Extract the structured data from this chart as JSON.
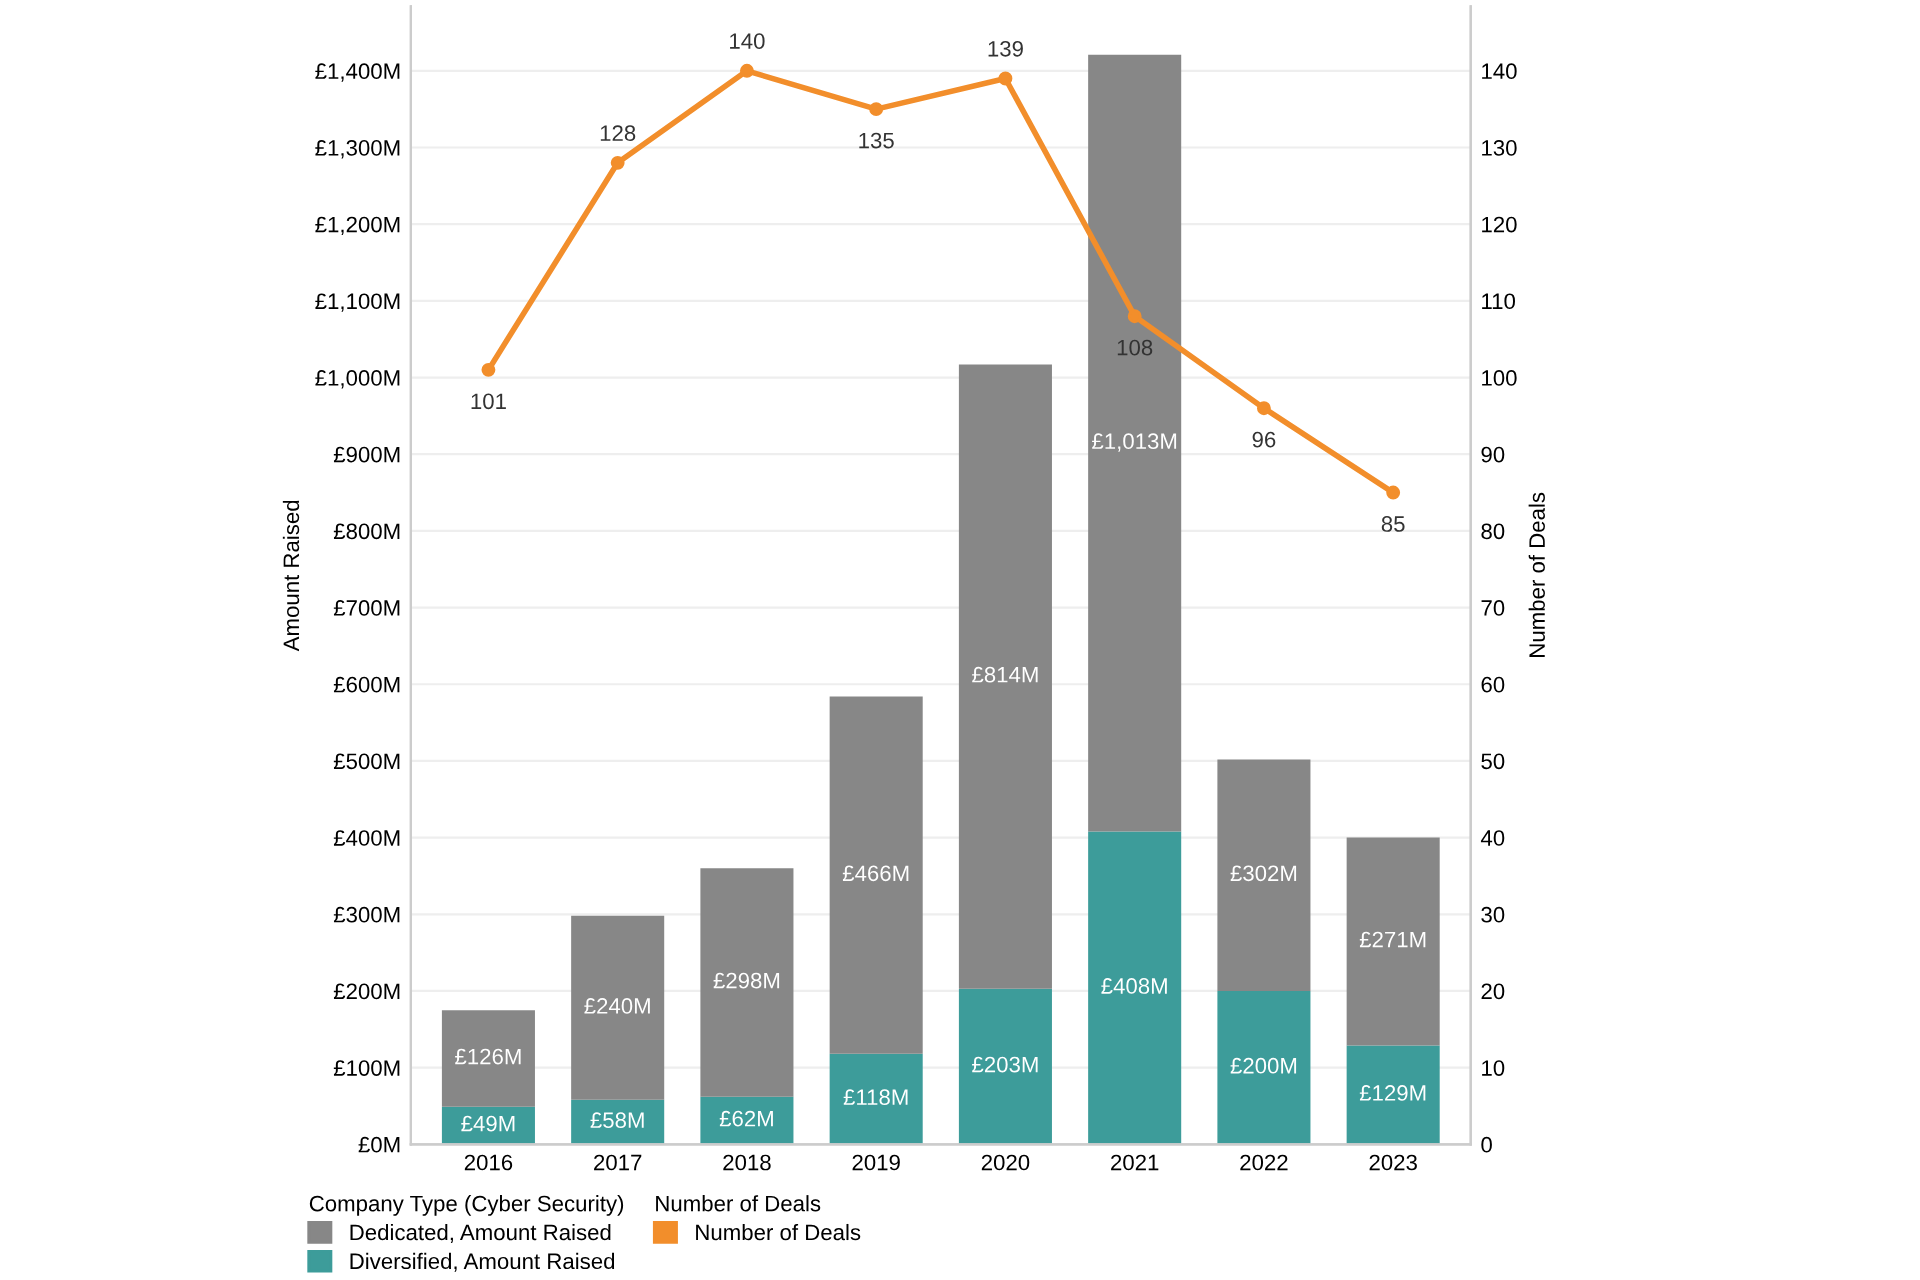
{
  "chart_data": {
    "type": "bar",
    "stacked": true,
    "categories": [
      "2016",
      "2017",
      "2018",
      "2019",
      "2020",
      "2021",
      "2022",
      "2023"
    ],
    "ylabel": "Amount Raised",
    "y2label": "Number of Deals",
    "legend_title": [
      "Company Type (Cyber Security)",
      "Number of Deals"
    ],
    "series": [
      {
        "name": "Diversified, Amount Raised",
        "color": "#3d9c9a",
        "values": [
          49,
          58,
          62,
          118,
          203,
          408,
          200,
          129
        ],
        "value_labels": [
          "£49M",
          "£58M",
          "£62M",
          "£118M",
          "£203M",
          "£408M",
          "£200M",
          "£129M"
        ]
      },
      {
        "name": "Dedicated, Amount Raised",
        "color": "#878787",
        "values": [
          126,
          240,
          298,
          466,
          814,
          1013,
          302,
          271
        ],
        "value_labels": [
          "£126M",
          "£240M",
          "£298M",
          "£466M",
          "£814M",
          "£1,013M",
          "£302M",
          "£271M"
        ]
      },
      {
        "name": "Number of Deals",
        "type": "line",
        "axis": "y2",
        "color": "#f28e2b",
        "marker": "circle",
        "values": [
          101,
          128,
          140,
          135,
          139,
          108,
          96,
          85
        ],
        "value_labels": [
          "101",
          "128",
          "140",
          "135",
          "139",
          "108",
          "96",
          "85"
        ]
      }
    ],
    "ylim": [
      0,
      1484
    ],
    "yticks": [
      {
        "value": 0,
        "label": "£0M"
      },
      {
        "value": 100,
        "label": "£100M"
      },
      {
        "value": 200,
        "label": "£200M"
      },
      {
        "value": 300,
        "label": "£300M"
      },
      {
        "value": 400,
        "label": "£400M"
      },
      {
        "value": 500,
        "label": "£500M"
      },
      {
        "value": 600,
        "label": "£600M"
      },
      {
        "value": 700,
        "label": "£700M"
      },
      {
        "value": 800,
        "label": "£800M"
      },
      {
        "value": 900,
        "label": "£900M"
      },
      {
        "value": 1000,
        "label": "£1,000M"
      },
      {
        "value": 1100,
        "label": "£1,100M"
      },
      {
        "value": 1200,
        "label": "£1,200M"
      },
      {
        "value": 1300,
        "label": "£1,300M"
      },
      {
        "value": 1400,
        "label": "£1,400M"
      }
    ],
    "y2lim": [
      0,
      148.4
    ],
    "y2ticks": [
      0,
      10,
      20,
      30,
      40,
      50,
      60,
      70,
      80,
      90,
      100,
      110,
      120,
      130,
      140
    ],
    "grid": "y",
    "legend": "bottom left"
  }
}
